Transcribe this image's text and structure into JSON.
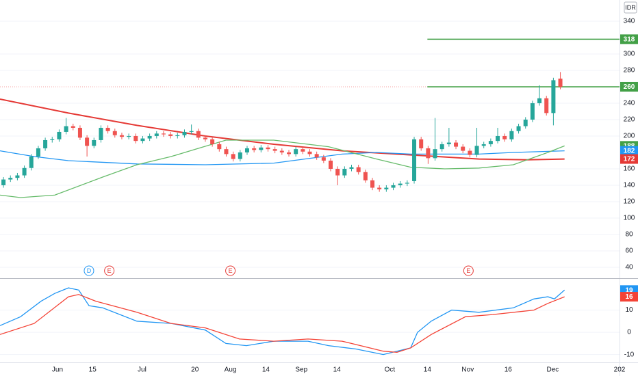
{
  "chart_data": [
    {
      "type": "candlestick",
      "currency": "IDR",
      "xlim": [
        -0.5,
        88.5
      ],
      "ylim": [
        28.3,
        365.8
      ],
      "yticks": [
        340,
        300,
        280,
        240,
        220,
        200,
        160,
        140,
        120,
        100,
        80,
        60,
        40
      ],
      "grid": true,
      "up_color": "#26a69a",
      "down_color": "#ef5350",
      "open": [
        140,
        147,
        149,
        152,
        161,
        175,
        185,
        195,
        196,
        205,
        212,
        210,
        198,
        188,
        195,
        210,
        206,
        201,
        199,
        200,
        194,
        197,
        200,
        203,
        202,
        200,
        201,
        205,
        206,
        198,
        196,
        190,
        184,
        178,
        172,
        180,
        185,
        183,
        186,
        184,
        182,
        180,
        178,
        184,
        181,
        178,
        174,
        170,
        160,
        152,
        160,
        162,
        156,
        146,
        137,
        135,
        137,
        140,
        142,
        145,
        196,
        185,
        173,
        184,
        190,
        192,
        187,
        182,
        177,
        188,
        190,
        194,
        200,
        196,
        206,
        212,
        220,
        240,
        246,
        228,
        270
      ],
      "high": [
        150,
        152,
        155,
        164,
        178,
        188,
        198,
        199,
        208,
        222,
        215,
        213,
        201,
        198,
        213,
        213,
        209,
        204,
        203,
        203,
        200,
        203,
        206,
        206,
        205,
        204,
        208,
        214,
        209,
        201,
        199,
        193,
        187,
        181,
        183,
        188,
        188,
        189,
        189,
        187,
        185,
        183,
        187,
        187,
        184,
        181,
        177,
        173,
        163,
        163,
        165,
        165,
        159,
        149,
        140,
        140,
        143,
        145,
        146,
        199,
        199,
        188,
        222,
        193,
        210,
        195,
        190,
        185,
        210,
        193,
        197,
        210,
        203,
        209,
        215,
        223,
        243,
        262,
        249,
        271,
        278
      ],
      "low": [
        137,
        144,
        146,
        149,
        158,
        172,
        182,
        192,
        193,
        202,
        207,
        195,
        175,
        185,
        192,
        203,
        198,
        196,
        196,
        191,
        191,
        194,
        197,
        199,
        197,
        197,
        198,
        202,
        195,
        193,
        187,
        181,
        175,
        169,
        169,
        177,
        180,
        180,
        181,
        179,
        177,
        175,
        175,
        178,
        175,
        171,
        167,
        157,
        140,
        149,
        157,
        153,
        143,
        134,
        132,
        132,
        134,
        137,
        139,
        142,
        182,
        166,
        170,
        181,
        187,
        184,
        179,
        174,
        174,
        185,
        187,
        191,
        193,
        193,
        203,
        209,
        217,
        237,
        225,
        213,
        257
      ],
      "close": [
        147,
        149,
        152,
        161,
        175,
        185,
        195,
        196,
        205,
        212,
        210,
        198,
        188,
        195,
        210,
        206,
        201,
        199,
        200,
        194,
        197,
        200,
        203,
        202,
        200,
        201,
        205,
        206,
        198,
        196,
        190,
        184,
        178,
        172,
        180,
        185,
        183,
        186,
        184,
        182,
        180,
        178,
        184,
        181,
        178,
        174,
        170,
        160,
        152,
        160,
        162,
        156,
        146,
        137,
        135,
        137,
        140,
        142,
        143,
        196,
        185,
        173,
        184,
        190,
        192,
        187,
        182,
        177,
        188,
        190,
        194,
        200,
        196,
        206,
        212,
        220,
        240,
        246,
        228,
        268,
        260
      ],
      "series": [
        {
          "color": "#e53935",
          "x": [
            -0.5,
            9.33,
            19.17,
            29.0,
            38.83,
            48.66,
            58.5,
            68.3,
            75.2,
            80.6
          ],
          "values": [
            245,
            228,
            213,
            200,
            190,
            182,
            177,
            172,
            171,
            172
          ]
        },
        {
          "color": "#2196f3",
          "x": [
            -0.5,
            4.42,
            9.33,
            19.17,
            29.0,
            38.83,
            48.66,
            53.6,
            58.5,
            63.4,
            68.3,
            73.25,
            80.6
          ],
          "values": [
            182,
            175,
            170,
            166,
            165,
            167,
            178,
            180,
            178,
            178,
            178,
            180,
            182
          ]
        },
        {
          "color": "#66bb6a",
          "x": [
            -0.5,
            2.45,
            7.37,
            14.25,
            19.17,
            24.08,
            28.0,
            31.95,
            38.83,
            46.7,
            53.6,
            58.5,
            63.4,
            68.3,
            73.25,
            78.2,
            80.6
          ],
          "values": [
            128,
            125,
            128,
            150,
            165,
            175,
            185,
            195,
            195,
            187,
            172,
            162,
            160,
            161,
            165,
            180,
            188
          ]
        }
      ],
      "hlines": [
        {
          "value": 260,
          "color": "#f7a5a5",
          "style": "dotted"
        },
        {
          "value": 318,
          "color": "#43a047",
          "from": 60.9
        },
        {
          "value": 260,
          "color": "#43a047",
          "from": 60.9
        }
      ],
      "axis_labels": [
        {
          "value": 318,
          "color": "#43a047"
        },
        {
          "value": 260,
          "color": "#43a047"
        },
        {
          "value": 188,
          "color": "#43a047"
        },
        {
          "value": 182,
          "color": "#2196f3"
        },
        {
          "value": 172,
          "color": "#e53935"
        }
      ],
      "events": [
        {
          "x": 12.28,
          "label": "D",
          "color": "#2196f3"
        },
        {
          "x": 15.2,
          "label": "E",
          "color": "#e53935"
        },
        {
          "x": 32.6,
          "label": "E",
          "color": "#e53935"
        },
        {
          "x": 66.8,
          "label": "E",
          "color": "#e53935"
        }
      ]
    },
    {
      "type": "line",
      "xlim": [
        -0.5,
        88.5
      ],
      "ylim": [
        -13.5,
        23.4
      ],
      "yticks": [
        10,
        0,
        -10
      ],
      "grid": true,
      "xticks": [
        {
          "value": 7.76,
          "label": "Jun"
        },
        {
          "value": 12.8,
          "label": "15"
        },
        {
          "value": 19.9,
          "label": "Jul"
        },
        {
          "value": 27.5,
          "label": "20"
        },
        {
          "value": 32.6,
          "label": "Aug"
        },
        {
          "value": 37.7,
          "label": "14"
        },
        {
          "value": 42.8,
          "label": "Sep"
        },
        {
          "value": 47.9,
          "label": "14"
        },
        {
          "value": 55.5,
          "label": "Oct"
        },
        {
          "value": 60.9,
          "label": "14"
        },
        {
          "value": 66.7,
          "label": "Nov"
        },
        {
          "value": 72.5,
          "label": "16"
        },
        {
          "value": 78.9,
          "label": "Dec"
        },
        {
          "value": 88.5,
          "label": "202"
        }
      ],
      "series": [
        {
          "color": "#2196f3",
          "x": [
            -0.5,
            2.45,
            5.4,
            7.37,
            9.33,
            10.81,
            12.28,
            14.25,
            19.17,
            24.08,
            29.0,
            31.95,
            34.9,
            38.83,
            43.75,
            46.7,
            50.63,
            54.56,
            58.5,
            59.48,
            61.45,
            64.4,
            68.3,
            73.25,
            76.2,
            78.2,
            79.15,
            80.6
          ],
          "values": [
            3,
            7,
            14,
            17.5,
            20,
            19,
            12,
            11,
            5,
            4,
            1,
            -5,
            -6,
            -4,
            -4,
            -6,
            -7.5,
            -10,
            -7,
            0,
            5,
            10,
            9,
            11,
            15,
            16,
            15,
            19
          ]
        },
        {
          "color": "#f44336",
          "x": [
            -0.5,
            4.42,
            9.33,
            10.81,
            13.27,
            19.17,
            24.08,
            29.0,
            33.9,
            38.83,
            43.75,
            48.66,
            54.56,
            56.53,
            58.5,
            61.45,
            66.36,
            70.3,
            76.2,
            78.2,
            80.6
          ],
          "values": [
            -1,
            4,
            16,
            17,
            14,
            9,
            4,
            2,
            -3,
            -4,
            -3,
            -4,
            -8.5,
            -9,
            -7,
            -1,
            7,
            8,
            10,
            13,
            16
          ]
        }
      ],
      "axis_labels": [
        {
          "value": 19,
          "color": "#2196f3"
        },
        {
          "value": 16,
          "color": "#f44336"
        }
      ]
    }
  ]
}
